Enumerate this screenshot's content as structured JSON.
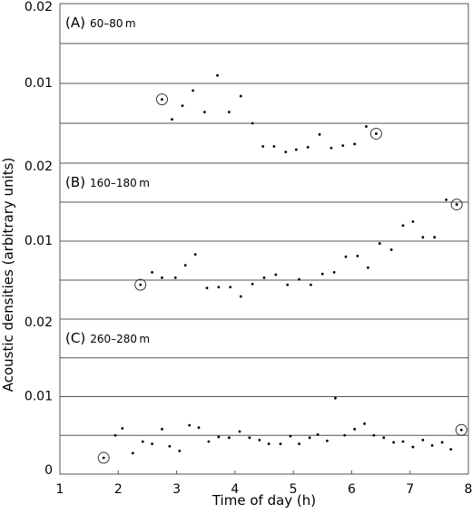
{
  "chart_data": {
    "type": "scatter",
    "xlabel": "Time of day (h)",
    "ylabel": "Acoustic densities (arbitrary units)",
    "xlim": [
      1,
      8
    ],
    "x_ticks": [
      "1",
      "2",
      "3",
      "4",
      "5",
      "6",
      "7",
      "8"
    ],
    "grid": "horizontal",
    "panels": [
      {
        "letter": "(A)",
        "depth": "60–80 m",
        "ylim": [
          0,
          0.02
        ],
        "y_ticks": [
          {
            "v": 0.02,
            "label": "0.02"
          },
          {
            "v": 0.01,
            "label": "0.01"
          }
        ],
        "gridlines": [
          0.015,
          0.01,
          0.005
        ],
        "points": [
          [
            2.92,
            0.0055
          ],
          [
            3.1,
            0.0072
          ],
          [
            3.28,
            0.0091
          ],
          [
            3.48,
            0.0064
          ],
          [
            3.7,
            0.011
          ],
          [
            3.9,
            0.0064
          ],
          [
            4.1,
            0.0084
          ],
          [
            4.3,
            0.005
          ],
          [
            4.48,
            0.0021
          ],
          [
            4.67,
            0.0021
          ],
          [
            4.87,
            0.0014
          ],
          [
            5.05,
            0.0017
          ],
          [
            5.25,
            0.002
          ],
          [
            5.45,
            0.0036
          ],
          [
            5.65,
            0.0019
          ],
          [
            5.85,
            0.0022
          ],
          [
            6.05,
            0.0024
          ],
          [
            6.25,
            0.0046
          ]
        ],
        "circled": [
          [
            2.75,
            0.008
          ],
          [
            6.42,
            0.0037
          ]
        ]
      },
      {
        "letter": "(B)",
        "depth": "160–180 m",
        "ylim": [
          0,
          0.02
        ],
        "y_ticks": [
          {
            "v": 0.02,
            "label": "0.02"
          },
          {
            "v": 0.01,
            "label": "0.01"
          }
        ],
        "gridlines": [
          0.015,
          0.01,
          0.005
        ],
        "points": [
          [
            2.58,
            0.006
          ],
          [
            2.75,
            0.0053
          ],
          [
            2.98,
            0.0053
          ],
          [
            3.15,
            0.0069
          ],
          [
            3.32,
            0.0083
          ],
          [
            3.52,
            0.004
          ],
          [
            3.72,
            0.0041
          ],
          [
            3.92,
            0.0041
          ],
          [
            4.1,
            0.0029
          ],
          [
            4.3,
            0.0045
          ],
          [
            4.5,
            0.0053
          ],
          [
            4.7,
            0.0057
          ],
          [
            4.9,
            0.0044
          ],
          [
            5.1,
            0.0051
          ],
          [
            5.3,
            0.0044
          ],
          [
            5.5,
            0.0058
          ],
          [
            5.7,
            0.006
          ],
          [
            5.9,
            0.008
          ],
          [
            6.1,
            0.0081
          ],
          [
            6.28,
            0.0066
          ],
          [
            6.48,
            0.0097
          ],
          [
            6.68,
            0.0089
          ],
          [
            6.88,
            0.012
          ],
          [
            7.05,
            0.0125
          ],
          [
            7.22,
            0.0105
          ],
          [
            7.42,
            0.0105
          ],
          [
            7.62,
            0.0153
          ]
        ],
        "circled": [
          [
            2.38,
            0.0044
          ],
          [
            7.8,
            0.0147
          ]
        ]
      },
      {
        "letter": "(C)",
        "depth": "260–280 m",
        "ylim": [
          0,
          0.02
        ],
        "y_ticks": [
          {
            "v": 0.02,
            "label": "0.02"
          },
          {
            "v": 0.01,
            "label": "0.01"
          },
          {
            "v": 0,
            "label": "0"
          }
        ],
        "gridlines": [
          0.015,
          0.01,
          0.005
        ],
        "points": [
          [
            1.95,
            0.005
          ],
          [
            2.07,
            0.0059
          ],
          [
            2.25,
            0.0027
          ],
          [
            2.42,
            0.0042
          ],
          [
            2.58,
            0.0039
          ],
          [
            2.75,
            0.0058
          ],
          [
            2.88,
            0.0036
          ],
          [
            3.05,
            0.003
          ],
          [
            3.22,
            0.0063
          ],
          [
            3.38,
            0.006
          ],
          [
            3.55,
            0.0042
          ],
          [
            3.72,
            0.0048
          ],
          [
            3.9,
            0.0047
          ],
          [
            4.08,
            0.0055
          ],
          [
            4.25,
            0.0047
          ],
          [
            4.42,
            0.0044
          ],
          [
            4.58,
            0.0039
          ],
          [
            4.78,
            0.0039
          ],
          [
            4.95,
            0.0049
          ],
          [
            5.1,
            0.0039
          ],
          [
            5.28,
            0.0047
          ],
          [
            5.42,
            0.0051
          ],
          [
            5.58,
            0.0043
          ],
          [
            5.72,
            0.0098
          ],
          [
            5.88,
            0.005
          ],
          [
            6.05,
            0.0058
          ],
          [
            6.22,
            0.0065
          ],
          [
            6.38,
            0.005
          ],
          [
            6.55,
            0.0047
          ],
          [
            6.72,
            0.0041
          ],
          [
            6.88,
            0.0042
          ],
          [
            7.05,
            0.0035
          ],
          [
            7.22,
            0.0044
          ],
          [
            7.38,
            0.0037
          ],
          [
            7.55,
            0.0041
          ],
          [
            7.7,
            0.0032
          ]
        ],
        "circled": [
          [
            1.75,
            0.0021
          ],
          [
            7.88,
            0.0057
          ]
        ]
      }
    ]
  }
}
